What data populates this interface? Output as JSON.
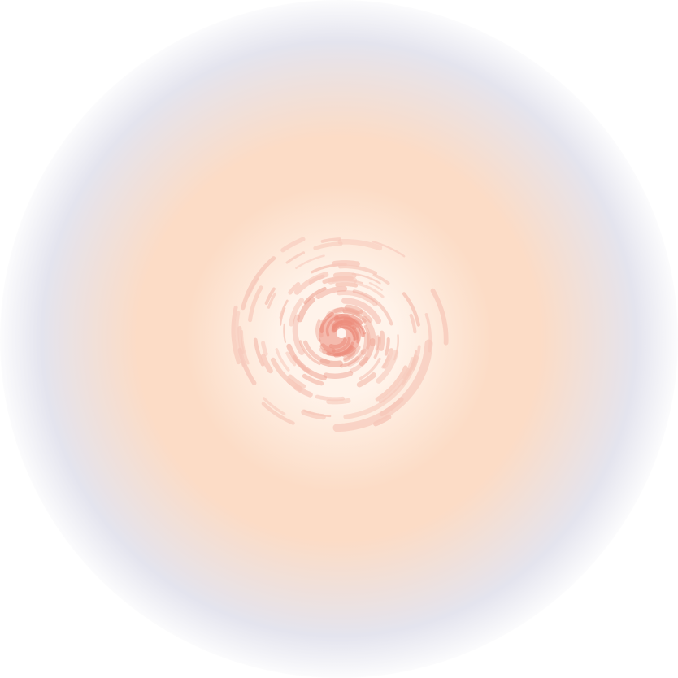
{
  "scene": {
    "description_colors": {
      "background": "#ffffff",
      "outer_haze": "#e4e4ee",
      "mid_glow": "#fcdcc6",
      "inner_glow": "#fff3ea",
      "swirl_light": "#f7c9bb",
      "swirl_mid": "#f0a898",
      "swirl_core": "#ec8c7c",
      "core_highlight": "#fff7f2"
    },
    "icon": "swirl-vortex-icon"
  }
}
